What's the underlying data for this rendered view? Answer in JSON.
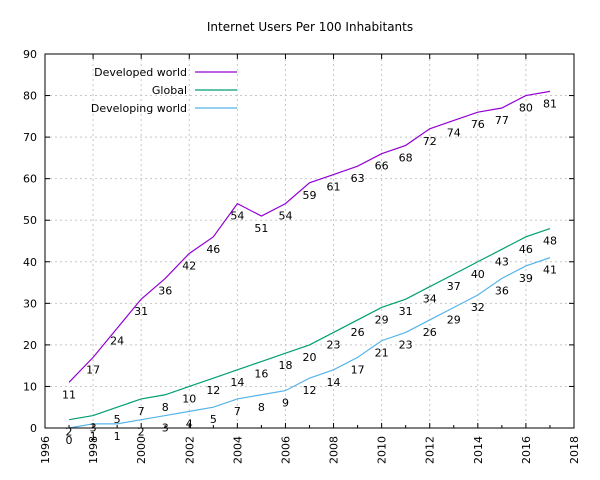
{
  "chart_data": {
    "type": "line",
    "title": "Internet Users Per 100 Inhabitants",
    "xlabel": "",
    "ylabel": "",
    "xlim": [
      1996,
      2018
    ],
    "ylim": [
      0,
      90
    ],
    "x_ticks": [
      "1996",
      "1998",
      "2000",
      "2002",
      "2004",
      "2006",
      "2008",
      "2010",
      "2012",
      "2014",
      "2016",
      "2018"
    ],
    "y_ticks": [
      "0",
      "10",
      "20",
      "30",
      "40",
      "50",
      "60",
      "70",
      "80",
      "90"
    ],
    "grid": true,
    "legend_position": "top-left",
    "x": [
      1997,
      1998,
      1999,
      2000,
      2001,
      2002,
      2003,
      2004,
      2005,
      2006,
      2007,
      2008,
      2009,
      2010,
      2011,
      2012,
      2013,
      2014,
      2015,
      2016,
      2017
    ],
    "series": [
      {
        "name": "Developed world",
        "color": "#9400d3",
        "values": [
          11,
          17,
          24,
          31,
          36,
          42,
          46,
          54,
          51,
          54,
          59,
          61,
          63,
          66,
          68,
          72,
          74,
          76,
          77,
          80,
          81
        ],
        "labels": [
          "11",
          "17",
          "24",
          "31",
          "36",
          "42",
          "46",
          "54",
          "51",
          "54",
          "59",
          "61",
          "63",
          "66",
          "68",
          "72",
          "74",
          "76",
          "77",
          "80",
          "81"
        ]
      },
      {
        "name": "Global",
        "color": "#009e73",
        "values": [
          2,
          3,
          5,
          7,
          8,
          10,
          12,
          14,
          16,
          18,
          20,
          23,
          26,
          29,
          31,
          34,
          37,
          40,
          43,
          46,
          48
        ],
        "labels": [
          "2",
          "3",
          "5",
          "7",
          "8",
          "10",
          "12",
          "14",
          "16",
          "18",
          "20",
          "23",
          "26",
          "29",
          "31",
          "34",
          "37",
          "40",
          "43",
          "46",
          "48"
        ]
      },
      {
        "name": "Developing world",
        "color": "#56b4e9",
        "values": [
          0,
          1,
          1,
          2,
          3,
          4,
          5,
          7,
          8,
          9,
          12,
          14,
          17,
          21,
          23,
          26,
          29,
          32,
          36,
          39,
          41
        ],
        "labels": [
          "0",
          "1",
          "1",
          "2",
          "3",
          "4",
          "5",
          "7",
          "8",
          "9",
          "12",
          "14",
          "17",
          "21",
          "23",
          "26",
          "29",
          "32",
          "36",
          "39",
          "41"
        ]
      }
    ]
  }
}
